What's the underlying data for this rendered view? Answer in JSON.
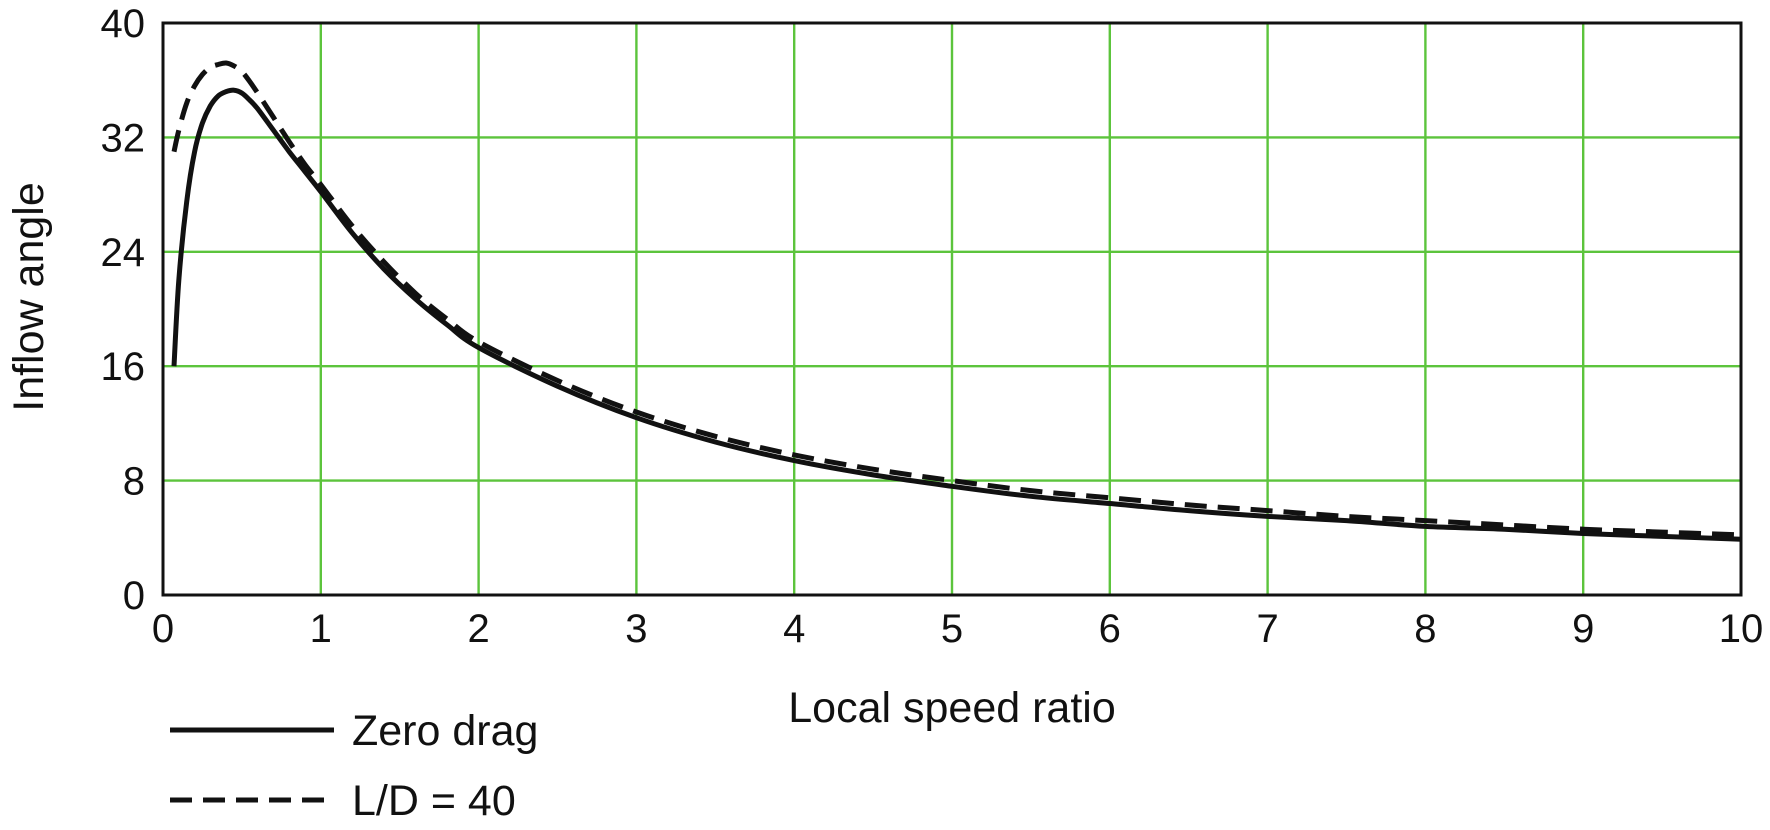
{
  "chart_data": {
    "type": "line",
    "title": "",
    "xlabel": "Local speed ratio",
    "ylabel": "Inflow angle",
    "xlim": [
      0,
      10
    ],
    "ylim": [
      0,
      40
    ],
    "xticks": [
      "0",
      "1",
      "2",
      "3",
      "4",
      "5",
      "6",
      "7",
      "8",
      "9",
      "10"
    ],
    "yticks": [
      "0",
      "8",
      "16",
      "24",
      "32",
      "40"
    ],
    "grid": true,
    "grid_color": "#5cc43c",
    "legend_position": "bottom-left",
    "series": [
      {
        "name": "Zero drag",
        "style": "solid",
        "color": "#111111",
        "x": [
          0.07,
          0.1,
          0.15,
          0.2,
          0.25,
          0.3,
          0.35,
          0.4,
          0.45,
          0.5,
          0.55,
          0.6,
          0.7,
          0.8,
          0.9,
          1.0,
          1.2,
          1.4,
          1.6,
          1.8,
          2.0,
          2.5,
          3.0,
          3.5,
          4.0,
          4.5,
          5.0,
          5.5,
          6.0,
          6.5,
          7.0,
          7.5,
          8.0,
          8.5,
          9.0,
          9.5,
          10.0
        ],
        "y": [
          16.0,
          22.0,
          27.5,
          31.0,
          33.0,
          34.2,
          34.9,
          35.2,
          35.3,
          35.1,
          34.6,
          34.0,
          32.5,
          31.0,
          29.6,
          28.2,
          25.3,
          22.8,
          20.7,
          18.9,
          17.3,
          14.6,
          12.4,
          10.7,
          9.4,
          8.4,
          7.6,
          6.9,
          6.4,
          5.9,
          5.5,
          5.2,
          4.8,
          4.6,
          4.3,
          4.1,
          3.9
        ]
      },
      {
        "name": "L/D = 40",
        "style": "dashed",
        "color": "#111111",
        "x": [
          0.07,
          0.1,
          0.15,
          0.2,
          0.25,
          0.3,
          0.35,
          0.4,
          0.45,
          0.5,
          0.55,
          0.6,
          0.7,
          0.8,
          0.9,
          1.0,
          1.2,
          1.4,
          1.6,
          1.8,
          2.0,
          2.5,
          3.0,
          3.5,
          4.0,
          4.5,
          5.0,
          5.5,
          6.0,
          6.5,
          7.0,
          7.5,
          8.0,
          8.5,
          9.0,
          9.5,
          10.0
        ],
        "y": [
          31.0,
          32.5,
          34.4,
          35.6,
          36.4,
          36.9,
          37.1,
          37.2,
          37.0,
          36.6,
          35.9,
          35.1,
          33.4,
          31.7,
          30.1,
          28.7,
          25.8,
          23.3,
          21.1,
          19.3,
          17.7,
          15.0,
          12.8,
          11.1,
          9.8,
          8.8,
          8.0,
          7.3,
          6.8,
          6.3,
          5.9,
          5.5,
          5.2,
          4.9,
          4.6,
          4.4,
          4.2
        ]
      }
    ]
  }
}
